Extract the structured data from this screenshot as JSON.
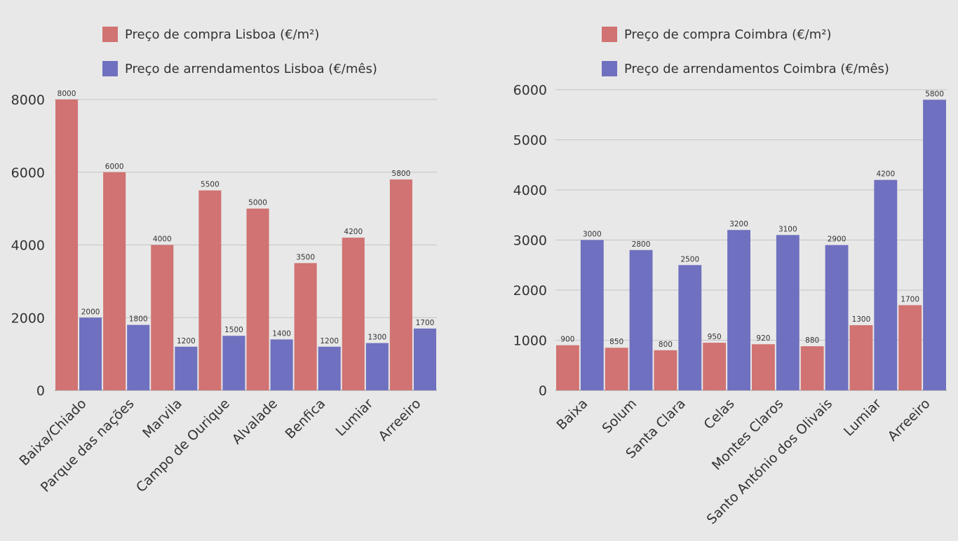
{
  "chart_data": [
    {
      "type": "bar",
      "title": "",
      "xlabel": "",
      "ylabel": "",
      "categories": [
        "Baixa/Chiado",
        "Parque das nações",
        "Marvila",
        "Campo de Ourique",
        "Alvalade",
        "Benfica",
        "Lumiar",
        "Arreeiro"
      ],
      "series": [
        {
          "name": "Preço de compra Lisboa (€/m²)",
          "color": "#d07372",
          "values": [
            8000,
            6000,
            4000,
            5500,
            5000,
            3500,
            4200,
            5800
          ]
        },
        {
          "name": "Preço de arrendamentos Lisboa (€/mês)",
          "color": "#7070c0",
          "values": [
            2000,
            1800,
            1200,
            1500,
            1400,
            1200,
            1300,
            1700
          ]
        }
      ],
      "ylim": [
        0,
        8000
      ],
      "yticks": [
        0,
        2000,
        4000,
        6000,
        8000
      ],
      "grid": true,
      "legend_position": "top",
      "data_labels": true
    },
    {
      "type": "bar",
      "title": "",
      "xlabel": "",
      "ylabel": "",
      "categories": [
        "Baixa",
        "Solum",
        "Santa Clara",
        "Celas",
        "Montes Claros",
        "Santo António dos Olivais",
        "Lumiar",
        "Arreeiro"
      ],
      "series": [
        {
          "name": "Preço de compra Coimbra (€/m²)",
          "color": "#d07372",
          "values": [
            900,
            850,
            800,
            950,
            920,
            880,
            1300,
            1700
          ]
        },
        {
          "name": "Preço de arrendamentos Coimbra (€/mês)",
          "color": "#7070c0",
          "values": [
            3000,
            2800,
            2500,
            3200,
            3100,
            2900,
            4200,
            5800
          ]
        }
      ],
      "ylim": [
        0,
        6000
      ],
      "yticks": [
        0,
        1000,
        2000,
        3000,
        4000,
        5000,
        6000
      ],
      "grid": true,
      "legend_position": "top",
      "data_labels": true
    }
  ]
}
